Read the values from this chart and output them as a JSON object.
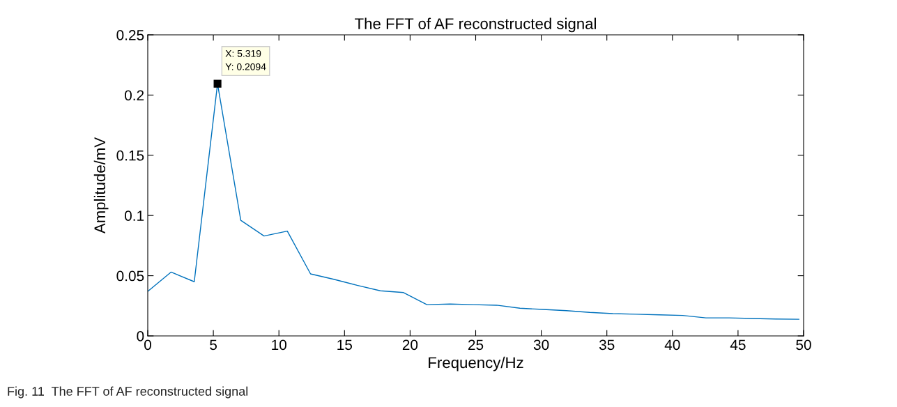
{
  "chart_data": {
    "type": "line",
    "title": "The FFT of AF reconstructed signal",
    "xlabel": "Frequency/Hz",
    "ylabel": "Amplitude/mV",
    "x": [
      0,
      1.773,
      3.546,
      5.319,
      7.092,
      8.865,
      10.64,
      12.41,
      14.18,
      15.96,
      17.73,
      19.5,
      21.28,
      23.05,
      24.82,
      26.6,
      28.37,
      30.14,
      31.91,
      33.69,
      35.46,
      37.23,
      39.01,
      40.78,
      42.55,
      44.33,
      46.1,
      47.87,
      49.64
    ],
    "series": [
      {
        "color": "#0072bd",
        "values": [
          0.037,
          0.053,
          0.045,
          0.2094,
          0.096,
          0.083,
          0.087,
          0.0515,
          0.047,
          0.042,
          0.0375,
          0.036,
          0.026,
          0.0265,
          0.026,
          0.0255,
          0.023,
          0.022,
          0.021,
          0.0195,
          0.0185,
          0.018,
          0.0175,
          0.017,
          0.015,
          0.015,
          0.0145,
          0.014,
          0.0138
        ]
      }
    ],
    "annotations": [
      {
        "text": "X: 5.319\nY: 0.2094",
        "x": 5.319,
        "y": 0.2094
      },
      "Fig. 11  The FFT of AF reconstructed signal"
    ],
    "xlim": [
      0,
      50
    ],
    "xticks": [
      0,
      5,
      10,
      15,
      20,
      25,
      30,
      35,
      40,
      45,
      50
    ],
    "ylim": [
      0,
      0.25
    ],
    "yticks": [
      0,
      0.05,
      0.1,
      0.15,
      0.2,
      0.25
    ],
    "grid": false,
    "legend": false,
    "marker": "none",
    "line_style": "solid"
  }
}
